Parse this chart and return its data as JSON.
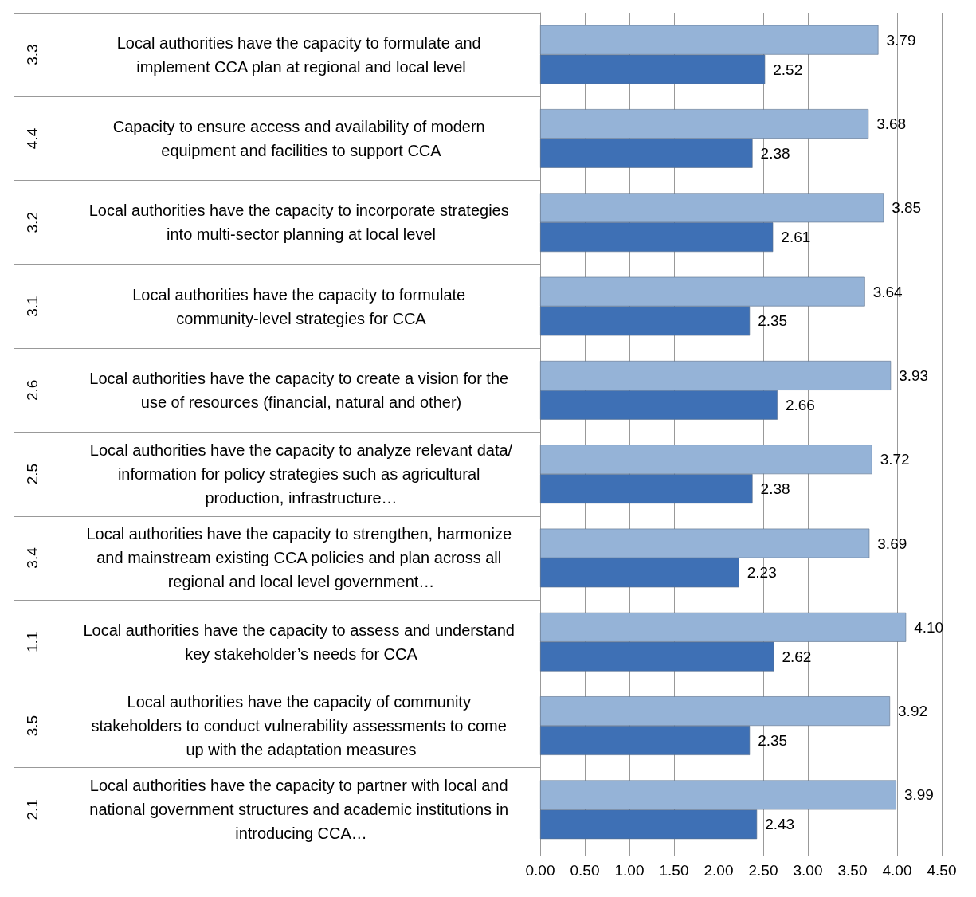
{
  "chart_data": {
    "type": "bar",
    "orientation": "horizontal",
    "categories": [
      "Local authorities have the capacity to formulate and implement CCA plan at regional and local level",
      "Capacity to ensure access and availability of modern equipment and facilities to support CCA",
      "Local authorities have the capacity to incorporate strategies into multi-sector planning at local level",
      "Local authorities have the capacity to formulate community-level strategies for CCA",
      "Local authorities have the capacity to create a vision for the use of resources (financial, natural and other)",
      "Local authorities have the capacity to analyze relevant data/information for policy strategies such as agricultural production, infrastructure…",
      "Local authorities have the capacity to strengthen, harmonize and mainstream existing CCA policies and plan across all regional and local level government…",
      "Local authorities have the capacity to assess and understand key stakeholder’s needs for CCA",
      "Local authorities have the capacity of community stakeholders to conduct vulnerability assessments to come up with the adaptation measures",
      "Local authorities have the capacity to partner with local and national government structures and academic institutions in introducing CCA…"
    ],
    "annotations": [
      "3.3",
      "4.4",
      "3.2",
      "3.1",
      "2.6",
      "2.5",
      "3.4",
      "1.1",
      "3.5",
      "2.1"
    ],
    "series": [
      {
        "color": "#95b3d7",
        "values": [
          3.79,
          3.68,
          3.85,
          3.64,
          3.93,
          3.72,
          3.69,
          4.1,
          3.92,
          3.99
        ],
        "value_labels": [
          "3.79",
          "3.68",
          "3.85",
          "3.64",
          "3.93",
          "3.72",
          "3.69",
          "4.10",
          "3.92",
          "3.99"
        ]
      },
      {
        "color": "#3e70b5",
        "values": [
          2.52,
          2.38,
          2.61,
          2.35,
          2.66,
          2.38,
          2.23,
          2.62,
          2.35,
          2.43
        ],
        "value_labels": [
          "2.52",
          "2.38",
          "2.61",
          "2.35",
          "2.66",
          "2.38",
          "2.23",
          "2.62",
          "2.35",
          "2.43"
        ]
      }
    ],
    "xlim": [
      0,
      4.5
    ],
    "xticks": [
      {
        "value": 0,
        "label": "0.00"
      },
      {
        "value": 0.5,
        "label": "0.50"
      },
      {
        "value": 1,
        "label": "1.00"
      },
      {
        "value": 1.5,
        "label": "1.50"
      },
      {
        "value": 2,
        "label": "2.00"
      },
      {
        "value": 2.5,
        "label": "2.50"
      },
      {
        "value": 3,
        "label": "3.00"
      },
      {
        "value": 3.5,
        "label": "3.50"
      },
      {
        "value": 4,
        "label": "4.00"
      },
      {
        "value": 4.5,
        "label": "4.50"
      }
    ],
    "grid": "x"
  }
}
